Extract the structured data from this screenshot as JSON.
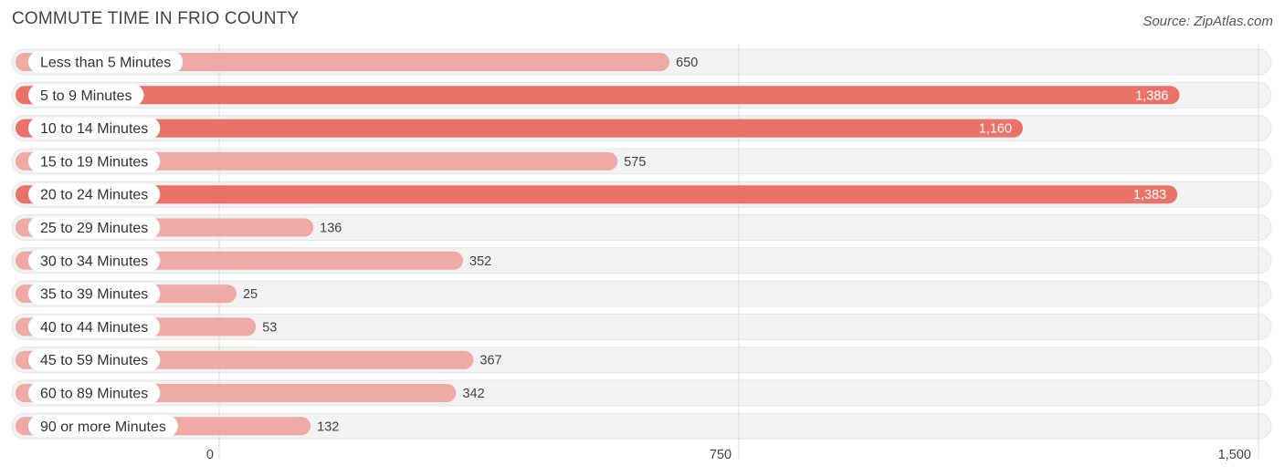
{
  "header": {
    "title": "COMMUTE TIME IN FRIO COUNTY",
    "source": "Source: ZipAtlas.com"
  },
  "colors": {
    "bar_strong": "#ea7268",
    "bar_light": "#f0aaa6",
    "track": "#f2f2f2",
    "grid": "#dddddd"
  },
  "chart_data": {
    "type": "bar",
    "orientation": "horizontal",
    "title": "COMMUTE TIME IN FRIO COUNTY",
    "categories": [
      "Less than 5 Minutes",
      "5 to 9 Minutes",
      "10 to 14 Minutes",
      "15 to 19 Minutes",
      "20 to 24 Minutes",
      "25 to 29 Minutes",
      "30 to 34 Minutes",
      "35 to 39 Minutes",
      "40 to 44 Minutes",
      "45 to 59 Minutes",
      "60 to 89 Minutes",
      "90 or more Minutes"
    ],
    "values": [
      650,
      1386,
      1160,
      575,
      1383,
      136,
      352,
      25,
      53,
      367,
      342,
      132
    ],
    "value_labels": [
      "650",
      "1,386",
      "1,160",
      "575",
      "1,383",
      "136",
      "352",
      "25",
      "53",
      "367",
      "342",
      "132"
    ],
    "xlim": [
      0,
      1500
    ],
    "xticks": [
      0,
      750,
      1500
    ],
    "xtick_labels": [
      "0",
      "750",
      "1,500"
    ],
    "xlabel": "",
    "ylabel": "",
    "grid": true
  }
}
